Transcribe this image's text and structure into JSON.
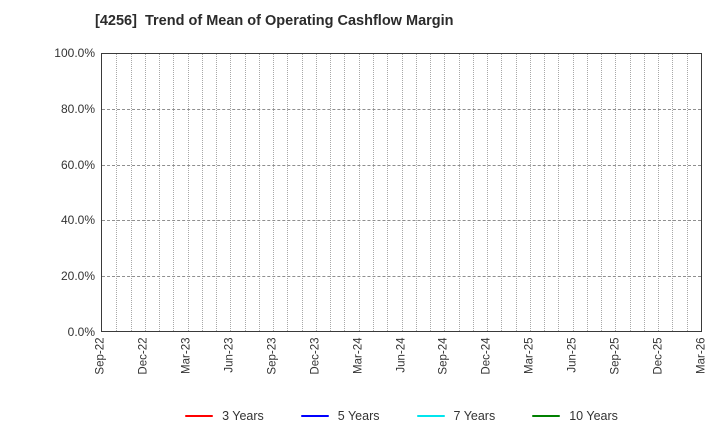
{
  "chart_data": {
    "type": "line",
    "title": "[4256]  Trend of Mean of Operating Cashflow Margin",
    "xlabel": "",
    "ylabel": "",
    "ylim": [
      0,
      100
    ],
    "y_major_step_pct": 20,
    "y_tick_labels": [
      "100.0%",
      "80.0%",
      "60.0%",
      "40.0%",
      "20.0%",
      "0.0%"
    ],
    "x_tick_labels": [
      "Sep-22",
      "Dec-22",
      "Mar-23",
      "Jun-23",
      "Sep-23",
      "Dec-23",
      "Mar-24",
      "Jun-24",
      "Sep-24",
      "Dec-24",
      "Mar-25",
      "Jun-25",
      "Sep-25",
      "Dec-25",
      "Mar-26"
    ],
    "x_minor_gridlines_per_interval": 3,
    "grid": true,
    "legend_position": "bottom-center",
    "series": [
      {
        "name": "3 Years",
        "color": "#ff0000",
        "values": []
      },
      {
        "name": "5 Years",
        "color": "#0000ff",
        "values": []
      },
      {
        "name": "7 Years",
        "color": "#00e5ee",
        "values": []
      },
      {
        "name": "10 Years",
        "color": "#008000",
        "values": []
      }
    ],
    "colors": {
      "axis_border": "#3a3a3a",
      "grid_vertical": "#a8a8a8",
      "grid_horizontal": "#8f8f8f",
      "text": "#333333",
      "background": "#ffffff"
    }
  }
}
